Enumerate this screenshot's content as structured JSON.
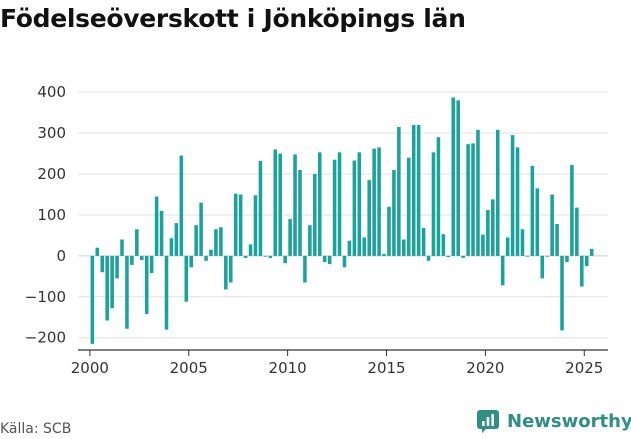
{
  "title": "Födelseöverskott i Jönköpings län",
  "source": "Källa: SCB",
  "brand": {
    "name": "Newsworthy",
    "icon": "newsworthy-logo-icon",
    "color": "#2f8f86"
  },
  "chart_data": {
    "type": "bar",
    "title": "Födelseöverskott i Jönköpings län",
    "xlabel": "",
    "ylabel": "",
    "bar_color": "#1aa39a",
    "grid": true,
    "ylim": [
      -230,
      420
    ],
    "xlim": [
      1999.4,
      2026.2
    ],
    "y_ticks": [
      -200,
      -100,
      0,
      100,
      200,
      300,
      400
    ],
    "y_tick_labels": [
      "−200",
      "−100",
      "0",
      "100",
      "200",
      "300",
      "400"
    ],
    "x_ticks": [
      2000,
      2005,
      2010,
      2015,
      2020,
      2025
    ],
    "x_tick_labels": [
      "2000",
      "2005",
      "2010",
      "2015",
      "2020",
      "2025"
    ],
    "series": [
      {
        "x": [
          "2000-01",
          "2000-04",
          "2000-07",
          "2000-10",
          "2001-01",
          "2001-04",
          "2001-07",
          "2001-10",
          "2002-01",
          "2002-04",
          "2002-07",
          "2002-10",
          "2003-01",
          "2003-04",
          "2003-07",
          "2003-10",
          "2004-01",
          "2004-04",
          "2004-07",
          "2004-10",
          "2005-01",
          "2005-04",
          "2005-07",
          "2005-10",
          "2006-01",
          "2006-04",
          "2006-07",
          "2006-10",
          "2007-01",
          "2007-04",
          "2007-07",
          "2007-10",
          "2008-01",
          "2008-04",
          "2008-07",
          "2008-10",
          "2009-01",
          "2009-04",
          "2009-07",
          "2009-10",
          "2010-01",
          "2010-04",
          "2010-07",
          "2010-10",
          "2011-01",
          "2011-04",
          "2011-07",
          "2011-10",
          "2012-01",
          "2012-04",
          "2012-07",
          "2012-10",
          "2013-01",
          "2013-04",
          "2013-07",
          "2013-10",
          "2014-01",
          "2014-04",
          "2014-07",
          "2014-10",
          "2015-01",
          "2015-04",
          "2015-07",
          "2015-10",
          "2016-01",
          "2016-04",
          "2016-07",
          "2016-10",
          "2017-01",
          "2017-04",
          "2017-07",
          "2017-10",
          "2018-01",
          "2018-04",
          "2018-07",
          "2018-10",
          "2019-01",
          "2019-04",
          "2019-07",
          "2019-10",
          "2020-01",
          "2020-04",
          "2020-07",
          "2020-10",
          "2021-01",
          "2021-04",
          "2021-07",
          "2021-10",
          "2022-01",
          "2022-04",
          "2022-07",
          "2022-10",
          "2023-01",
          "2023-04",
          "2023-07",
          "2023-10",
          "2024-01",
          "2024-04",
          "2024-07",
          "2024-10",
          "2025-01",
          "2025-04"
        ],
        "values": [
          -215,
          20,
          -40,
          -158,
          -128,
          -55,
          40,
          -178,
          -22,
          65,
          -10,
          -142,
          -42,
          145,
          110,
          -180,
          43,
          80,
          245,
          -112,
          -28,
          75,
          130,
          -12,
          15,
          65,
          70,
          -82,
          -65,
          152,
          150,
          -5,
          28,
          148,
          232,
          0,
          -5,
          260,
          250,
          -18,
          90,
          248,
          210,
          -65,
          75,
          200,
          253,
          -15,
          -20,
          235,
          253,
          -28,
          37,
          233,
          253,
          45,
          185,
          262,
          265,
          5,
          120,
          210,
          315,
          40,
          240,
          320,
          320,
          68,
          -12,
          253,
          290,
          53,
          -3,
          387,
          380,
          -5,
          273,
          275,
          308,
          52,
          112,
          138,
          308,
          -72,
          45,
          295,
          265,
          65,
          0,
          220,
          165,
          -55,
          0,
          150,
          78,
          -182,
          -15,
          222,
          118,
          -75,
          -25,
          17
        ]
      }
    ]
  }
}
